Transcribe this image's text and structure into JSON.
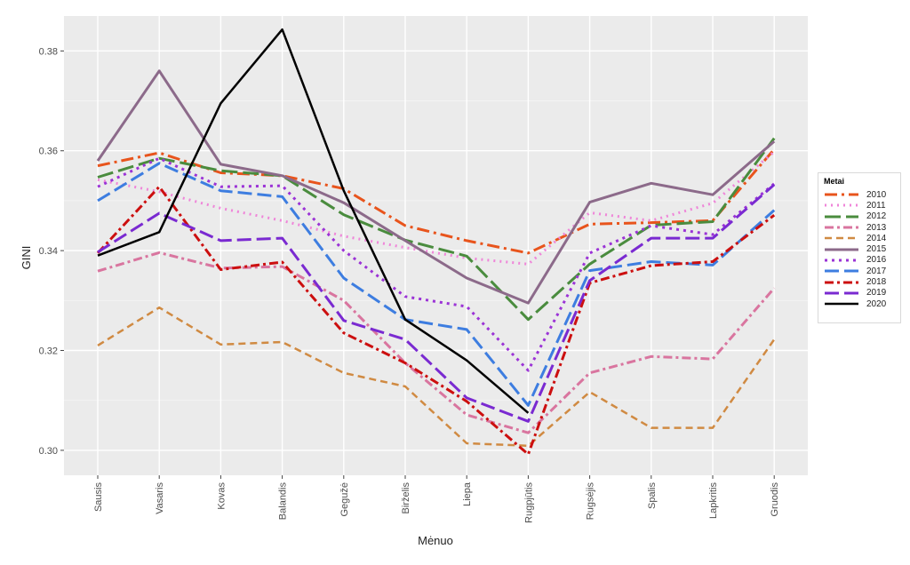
{
  "chart_data": {
    "type": "line",
    "title": "",
    "xlabel": "Mėnuo",
    "ylabel": "GINI",
    "categories": [
      "Sausis",
      "Vasaris",
      "Kovas",
      "Balandis",
      "Gegužė",
      "Birželis",
      "Liepa",
      "Rugpjūtis",
      "Rugsėjis",
      "Spalis",
      "Lapkritis",
      "Gruodis"
    ],
    "ylim": [
      0.295,
      0.387
    ],
    "yticks": [
      0.3,
      0.32,
      0.34,
      0.36,
      0.38
    ],
    "ytick_labels": [
      "0.30",
      "0.32",
      "0.34",
      "0.36",
      "0.38"
    ],
    "grid": true,
    "legend": {
      "title": "Metai",
      "position": "right"
    },
    "series": [
      {
        "name": "2010",
        "color": "#e8541c",
        "dash": "14,5,3,5",
        "width": 3,
        "values": [
          0.357,
          0.3596,
          0.3556,
          0.355,
          0.3524,
          0.345,
          0.342,
          0.3395,
          0.3453,
          0.3456,
          0.346,
          0.3603
        ]
      },
      {
        "name": "2011",
        "color": "#ef86d9",
        "dash": "2,5",
        "width": 3,
        "values": [
          0.3542,
          0.3518,
          0.3485,
          0.346,
          0.3429,
          0.3406,
          0.3385,
          0.3373,
          0.3476,
          0.346,
          0.3495,
          0.3598
        ]
      },
      {
        "name": "2012",
        "color": "#4a8c3e",
        "dash": "18,6",
        "width": 3,
        "values": [
          0.3547,
          0.3585,
          0.356,
          0.355,
          0.3472,
          0.3421,
          0.3389,
          0.3262,
          0.3373,
          0.3451,
          0.3458,
          0.3625
        ]
      },
      {
        "name": "2013",
        "color": "#d9759f",
        "dash": "10,4,3,4",
        "width": 3,
        "values": [
          0.3359,
          0.3396,
          0.3365,
          0.3368,
          0.33,
          0.3175,
          0.3071,
          0.3035,
          0.3155,
          0.3188,
          0.3183,
          0.3325
        ]
      },
      {
        "name": "2014",
        "color": "#d08a42",
        "dash": "8,5",
        "width": 2.5,
        "values": [
          0.321,
          0.3286,
          0.3212,
          0.3217,
          0.3155,
          0.3128,
          0.3014,
          0.3009,
          0.3117,
          0.3045,
          0.3045,
          0.3222
        ]
      },
      {
        "name": "2015",
        "color": "#8c6a8a",
        "dash": "",
        "width": 3,
        "values": [
          0.358,
          0.376,
          0.3573,
          0.355,
          0.3496,
          0.342,
          0.3345,
          0.3295,
          0.3497,
          0.3535,
          0.3512,
          0.3619
        ]
      },
      {
        "name": "2016",
        "color": "#9b33d6",
        "dash": "3,5",
        "width": 3,
        "values": [
          0.3528,
          0.3585,
          0.3528,
          0.353,
          0.34,
          0.3308,
          0.3288,
          0.316,
          0.3395,
          0.345,
          0.3432,
          0.3534
        ]
      },
      {
        "name": "2017",
        "color": "#3d7de0",
        "dash": "16,6",
        "width": 3,
        "values": [
          0.35,
          0.3575,
          0.352,
          0.3508,
          0.3345,
          0.3262,
          0.3242,
          0.309,
          0.336,
          0.3378,
          0.3371,
          0.3481
        ]
      },
      {
        "name": "2018",
        "color": "#cc0f0f",
        "dash": "10,4,3,4",
        "width": 3,
        "values": [
          0.3395,
          0.3528,
          0.3362,
          0.3377,
          0.3235,
          0.3175,
          0.3098,
          0.2992,
          0.3335,
          0.337,
          0.3378,
          0.3471
        ]
      },
      {
        "name": "2019",
        "color": "#7a2ad1",
        "dash": "16,6",
        "width": 3,
        "values": [
          0.3397,
          0.3475,
          0.342,
          0.3425,
          0.326,
          0.3222,
          0.3105,
          0.3058,
          0.334,
          0.3425,
          0.3425,
          0.3532
        ]
      },
      {
        "name": "2020",
        "color": "#000000",
        "dash": "",
        "width": 2.5,
        "values": [
          0.339,
          0.3437,
          0.3695,
          0.3843,
          0.352,
          0.3262,
          0.318,
          0.3075,
          null,
          null,
          null,
          null
        ]
      }
    ]
  }
}
